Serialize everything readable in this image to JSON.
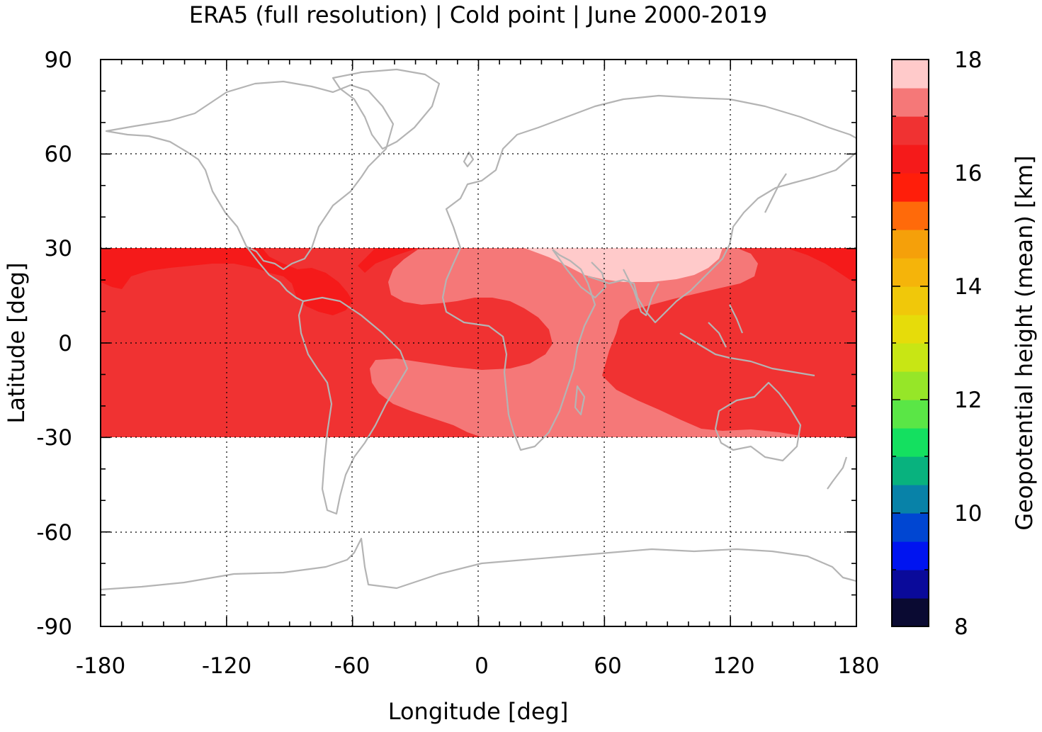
{
  "title": "ERA5 (full resolution) | Cold point | June 2000-2019",
  "map": {
    "x_axis": {
      "label": "Longitude [deg]",
      "ticks": [
        "-180",
        "-120",
        "-60",
        "0",
        "60",
        "120",
        "180"
      ],
      "values": [
        -180,
        -120,
        -60,
        0,
        60,
        120,
        180
      ],
      "range": [
        -180,
        180
      ]
    },
    "y_axis": {
      "label": "Latitude [deg]",
      "ticks": [
        "90",
        "60",
        "30",
        "0",
        "-30",
        "-60",
        "-90"
      ],
      "values": [
        90,
        60,
        30,
        0,
        -30,
        -60,
        -90
      ],
      "range": [
        -90,
        90
      ]
    },
    "grid": "dotted, every 60 deg longitude and 30 deg latitude",
    "coastline_color": "#b4b4b4",
    "data_band_lat": [
      -30,
      30
    ],
    "regions": [
      {
        "name": "background band",
        "value_range_km": [
          16.5,
          17.0
        ],
        "color": "#f03232"
      },
      {
        "name": "east pacific upper",
        "value_range_km": [
          16.0,
          16.5
        ],
        "color": "#f51a1a"
      },
      {
        "name": "atlantic-africa-indian",
        "value_range_km": [
          17.0,
          17.5
        ],
        "color": "#f57878"
      },
      {
        "name": "tibet-india",
        "value_range_km": [
          17.5,
          18.0
        ],
        "color": "#ffcaca"
      }
    ]
  },
  "colorbar": {
    "label": "Geopotential height (mean) [km]",
    "ticks": [
      "18",
      "16",
      "14",
      "12",
      "10",
      "8"
    ],
    "tick_values": [
      18,
      16,
      14,
      12,
      10,
      8
    ],
    "range": [
      8,
      18
    ],
    "colors_bottom_to_top": [
      "#0a0a32",
      "#0a0a9a",
      "#0014f0",
      "#0046d2",
      "#0882a8",
      "#08b27e",
      "#14e060",
      "#5ae646",
      "#96e628",
      "#c8e614",
      "#e6dc0a",
      "#f0c80a",
      "#f5b40a",
      "#f5a00a",
      "#ff6a0a",
      "#ff1e0a",
      "#f51a1a",
      "#f03232",
      "#f57878",
      "#ffcaca"
    ]
  }
}
